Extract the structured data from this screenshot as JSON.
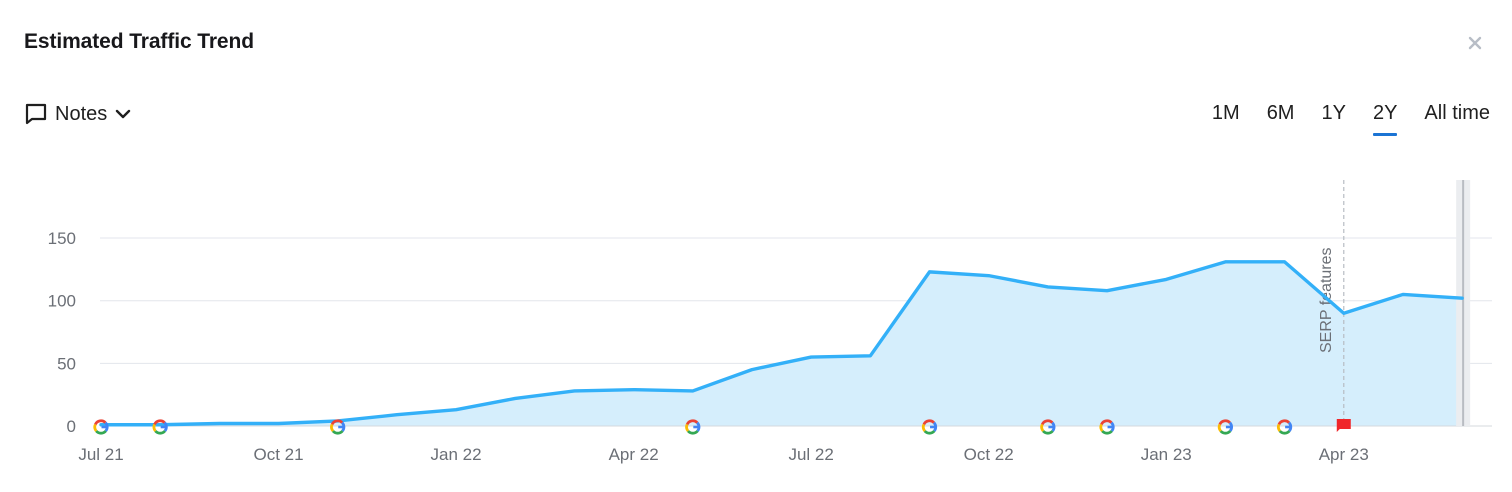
{
  "header": {
    "title": "Estimated Traffic Trend",
    "close_icon": "close-icon"
  },
  "toolbar": {
    "notes_label": "Notes",
    "notes_icon": "comment-icon",
    "dropdown_icon": "chevron-down-icon",
    "ranges": [
      "1M",
      "6M",
      "1Y",
      "2Y",
      "All time"
    ],
    "active_range": "2Y"
  },
  "chart_data": {
    "type": "area",
    "title": "",
    "xlabel": "",
    "ylabel": "",
    "x": [
      "2021-07",
      "2021-08",
      "2021-09",
      "2021-10",
      "2021-11",
      "2021-12",
      "2022-01",
      "2022-02",
      "2022-03",
      "2022-04",
      "2022-05",
      "2022-06",
      "2022-07",
      "2022-08",
      "2022-09",
      "2022-10",
      "2022-11",
      "2022-12",
      "2023-01",
      "2023-02",
      "2023-03",
      "2023-04",
      "2023-05",
      "2023-06"
    ],
    "values": [
      1,
      1,
      2,
      2,
      4,
      9,
      13,
      22,
      28,
      29,
      28,
      45,
      55,
      56,
      123,
      120,
      111,
      108,
      117,
      131,
      131,
      90,
      105,
      102
    ],
    "x_tick_labels": [
      "Jul 21",
      "Oct 21",
      "Jan 22",
      "Apr 22",
      "Jul 22",
      "Oct 22",
      "Jan 23",
      "Apr 23"
    ],
    "y_ticks": [
      0,
      50,
      100,
      150
    ],
    "ylim": [
      0,
      190
    ],
    "grid": true,
    "line_color": "#33b0f8",
    "fill_color": "#d5eefc",
    "google_update_markers": [
      "2021-07",
      "2021-08",
      "2021-11",
      "2022-05",
      "2022-09",
      "2022-11",
      "2022-12",
      "2023-02",
      "2023-03"
    ],
    "annotation": {
      "label": "SERP features",
      "x": "2023-04",
      "flag_color": "#f0262a"
    }
  }
}
